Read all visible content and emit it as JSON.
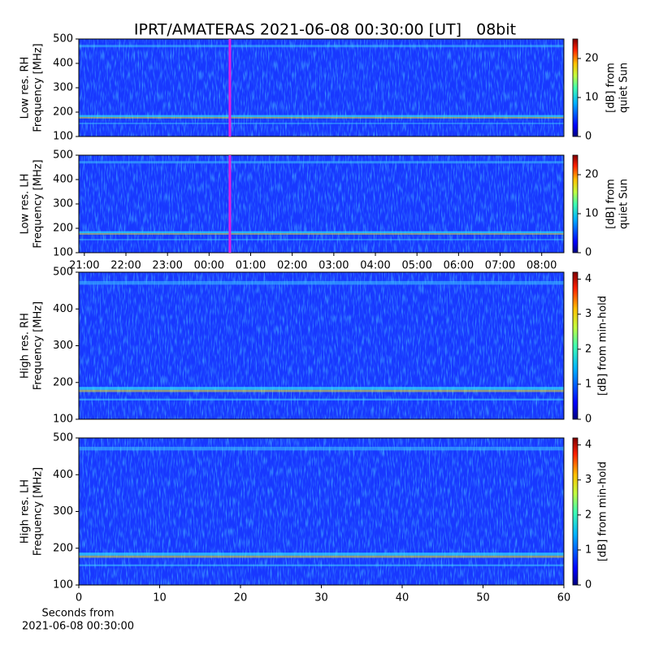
{
  "chart_data": {
    "title": "IPRT/AMATERAS 2021-06-08 00:30:00 [UT]   08bit",
    "panels": [
      {
        "type": "heatmap",
        "ylabel": [
          "Low res. RH",
          "Frequency [MHz]"
        ],
        "ylim": [
          100,
          500
        ],
        "yticks": [
          100,
          200,
          300,
          400,
          500
        ],
        "xlim": [
          -188,
          512
        ],
        "marker_x": 30,
        "marker_color": "#e020e0",
        "colorbar": {
          "label": [
            "[dB] from",
            "quiet Sun"
          ],
          "lim": [
            0,
            25
          ],
          "ticks": [
            0,
            10,
            20
          ]
        }
      },
      {
        "type": "heatmap",
        "ylabel": [
          "Low res. LH",
          "Frequency [MHz]"
        ],
        "ylim": [
          100,
          500
        ],
        "yticks": [
          100,
          200,
          300,
          400,
          500
        ],
        "xlim": [
          -188,
          512
        ],
        "marker_x": 30,
        "marker_color": "#e020e0",
        "xticks": [
          {
            "value": -180,
            "label": "21:00"
          },
          {
            "value": -120,
            "label": "22:00"
          },
          {
            "value": -60,
            "label": "23:00"
          },
          {
            "value": 0,
            "label": "00:00"
          },
          {
            "value": 60,
            "label": "01:00"
          },
          {
            "value": 120,
            "label": "02:00"
          },
          {
            "value": 180,
            "label": "03:00"
          },
          {
            "value": 240,
            "label": "04:00"
          },
          {
            "value": 300,
            "label": "05:00"
          },
          {
            "value": 360,
            "label": "06:00"
          },
          {
            "value": 420,
            "label": "07:00"
          },
          {
            "value": 480,
            "label": "08:00"
          }
        ],
        "colorbar": {
          "label": [
            "[dB] from",
            "quiet Sun"
          ],
          "lim": [
            0,
            25
          ],
          "ticks": [
            0,
            10,
            20
          ]
        }
      },
      {
        "type": "heatmap",
        "ylabel": [
          "High res. RH",
          "Frequency [MHz]"
        ],
        "ylim": [
          100,
          500
        ],
        "yticks": [
          100,
          200,
          300,
          400,
          500
        ],
        "xlim": [
          0,
          60
        ],
        "colorbar": {
          "label": [
            "[dB] from min-hold"
          ],
          "lim": [
            0,
            4.2
          ],
          "ticks": [
            0,
            1,
            2,
            3,
            4
          ]
        }
      },
      {
        "type": "heatmap",
        "ylabel": [
          "High res. LH",
          "Frequency [MHz]"
        ],
        "ylim": [
          100,
          500
        ],
        "yticks": [
          100,
          200,
          300,
          400,
          500
        ],
        "xlim": [
          0,
          60
        ],
        "xticks": [
          0,
          10,
          20,
          30,
          40,
          50,
          60
        ],
        "xlabel": [
          "Seconds from",
          "2021-06-08 00:30:00"
        ],
        "colorbar": {
          "label": [
            "[dB] from min-hold"
          ],
          "lim": [
            0,
            4.2
          ],
          "ticks": [
            0,
            1,
            2,
            3,
            4
          ]
        }
      }
    ]
  }
}
